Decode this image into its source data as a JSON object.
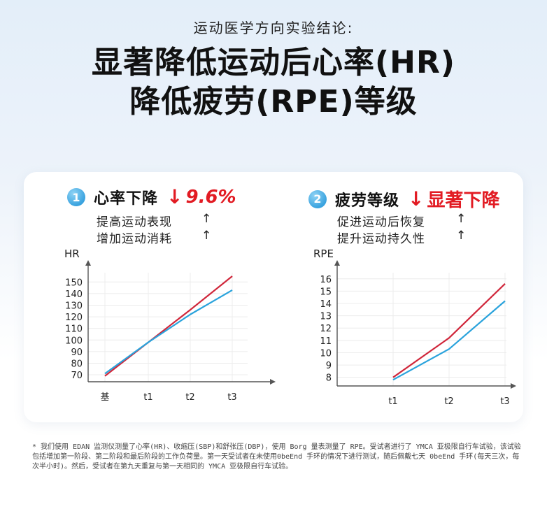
{
  "header": {
    "eyebrow": "运动医学方向实验结论:",
    "headline_line1": "显著降低运动后心率(HR)",
    "headline_line2": "降低疲劳(RPE)等级"
  },
  "panels": [
    {
      "number": "1",
      "title": "心率下降",
      "arrow": "↓",
      "stat": "9.6%",
      "benefits": [
        {
          "text": "提高运动表现",
          "arrow": "↑"
        },
        {
          "text": "增加运动消耗",
          "arrow": "↑"
        }
      ]
    },
    {
      "number": "2",
      "title": "疲劳等级",
      "arrow": "↓",
      "stat": "显著下降",
      "benefits": [
        {
          "text": "促进运动后恢复",
          "arrow": "↑"
        },
        {
          "text": "提升运动持久性",
          "arrow": "↑"
        }
      ]
    }
  ],
  "chart_data": [
    {
      "type": "line",
      "ylabel": "HR",
      "categories": [
        "基",
        "t1",
        "t2",
        "t3"
      ],
      "yticks": [
        70,
        80,
        90,
        100,
        110,
        120,
        130,
        140,
        150
      ],
      "ylim": [
        64,
        158
      ],
      "grid": true,
      "series": [
        {
          "color": "#d0273b",
          "values": [
            69,
            98,
            126,
            155
          ]
        },
        {
          "color": "#2aa3dc",
          "values": [
            71,
            98,
            122,
            143
          ]
        }
      ]
    },
    {
      "type": "line",
      "ylabel": "RPE",
      "categories": [
        "t1",
        "t2",
        "t3"
      ],
      "yticks": [
        8,
        9,
        10,
        11,
        12,
        13,
        14,
        15,
        16
      ],
      "ylim": [
        7.3,
        16.5
      ],
      "grid": true,
      "series": [
        {
          "color": "#d0273b",
          "values": [
            8.0,
            11.2,
            15.6
          ]
        },
        {
          "color": "#2aa3dc",
          "values": [
            7.8,
            10.3,
            14.2
          ]
        }
      ]
    }
  ],
  "footnote": "* 我们使用 EDAN 监测仪测量了心率(HR)、收缩压(SBP)和舒张压(DBP)，使用 Borg 量表测量了 RPE。受试者进行了 YMCA 亚极限自行车试验，该试验包括增加第一阶段、第二阶段和最后阶段的工作负荷量。第一天受试者在未使用0beEnd 手环的情况下进行测试，随后佩戴七天 0beEnd 手环(每天三次，每次半小时)。然后，受试者在第九天重复与第一天相同的 YMCA 亚极限自行车试验。"
}
